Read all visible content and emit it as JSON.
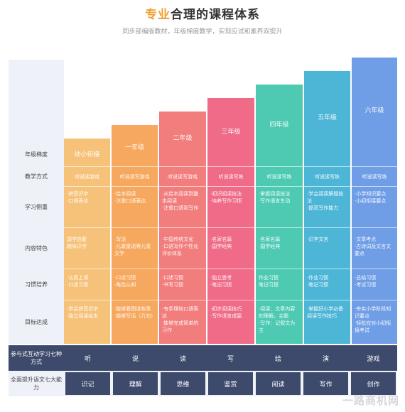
{
  "header": {
    "title_accent": "专业",
    "title_rest": "合理的课程体系",
    "subtitle": "同步部编版教材，年级梯度教学，实现应试和素养双提升"
  },
  "rows": {
    "grade": "年级梯度",
    "method": "教学方式",
    "focus": "学习侧重",
    "content": "内容特色",
    "habit": "习惯培养",
    "goal": "目标达成",
    "interact": "参与式互动学习七种方式",
    "ability": "全面提升语文七大能力"
  },
  "columns": [
    {
      "grade": "幼小衔接",
      "color": "#f6c27a",
      "method": "听说读游戏",
      "focus": [
        "·拼音识字",
        "·口语表达"
      ],
      "content": [
        "国学启蒙",
        "趣味识字"
      ],
      "habit": [
        "·认真上课",
        "·口述习惯"
      ],
      "goal": [
        "·学会拼音识字",
        "·独立阅读绘本"
      ]
    },
    {
      "grade": "一年级",
      "color": "#f6a85e",
      "method": "听说读写游戏",
      "focus": [
        "·绘本阅读",
        "·注重口语表达"
      ],
      "content": [
        "·写话",
        "·儿歌童谣等儿童文学"
      ],
      "habit": [
        "·口述习惯",
        "·角色认知"
      ],
      "goal": [
        "·能够看图讲故事",
        "·能够写话（几句）"
      ]
    },
    {
      "grade": "二年级",
      "color": "#f27d7d",
      "method": "听说读写游戏",
      "focus": [
        "·从绘本阅读到整本阅读",
        "·注重口语到写作"
      ],
      "content": [
        "·中国传统文化",
        "·口语写作个性化评价体系"
      ],
      "habit": [
        "·口述习惯",
        "·书写习惯"
      ],
      "goal": [
        "·有条理地口语表达",
        "·能够完成简单的习作"
      ]
    },
    {
      "grade": "三年级",
      "color": "#ef6b87",
      "method": "听说读写练",
      "focus": [
        "·初识阅读技法",
        "·培养写作习惯"
      ],
      "content": [
        "·名家名篇",
        "·国学经典"
      ],
      "habit": [
        "·独立思考",
        "·笔记习惯"
      ],
      "goal": [
        "·初步阅读技巧",
        "·写作语言成篇"
      ]
    },
    {
      "grade": "四年级",
      "color": "#4ecab3",
      "method": "听说读写练",
      "focus": [
        "·掌握阅读技法",
        "·写作语言生动"
      ],
      "content": [
        "·名家名篇",
        "·国学经典"
      ],
      "habit": [
        "作业习惯",
        "笔记习惯"
      ],
      "goal": [
        "·阅读：文章内容的理解，主题",
        "·写作：记叙文为主"
      ]
    },
    {
      "grade": "五年级",
      "color": "#4db6d6",
      "method": "听说读写练",
      "focus": [
        "·学会阅读解题技法",
        "·提高写作能力"
      ],
      "content": [
        "·识字文言"
      ],
      "habit": [
        "·作业习惯",
        "·笔记习惯"
      ],
      "goal": [
        "·掌握好小学必备阅读写作技巧"
      ]
    },
    {
      "grade": "六年级",
      "color": "#6f9ee6",
      "method": "听说读写练",
      "focus": [
        "·小学知识要点",
        "·小初衔接要点"
      ],
      "content": [
        "·文章考点",
        "·古诗词及文言文要点"
      ],
      "habit": [
        "·总结习惯",
        "·考试习惯"
      ],
      "goal": [
        "·夯实小学阶段知识要点",
        "·轻松应对小初衔接考试"
      ]
    }
  ],
  "interact_items": [
    "听",
    "说",
    "读",
    "写",
    "绘",
    "演",
    "游戏"
  ],
  "ability_items": [
    "识记",
    "理解",
    "思维",
    "鉴赏",
    "阅读",
    "写作",
    "创作"
  ],
  "watermark": "一路商机网"
}
